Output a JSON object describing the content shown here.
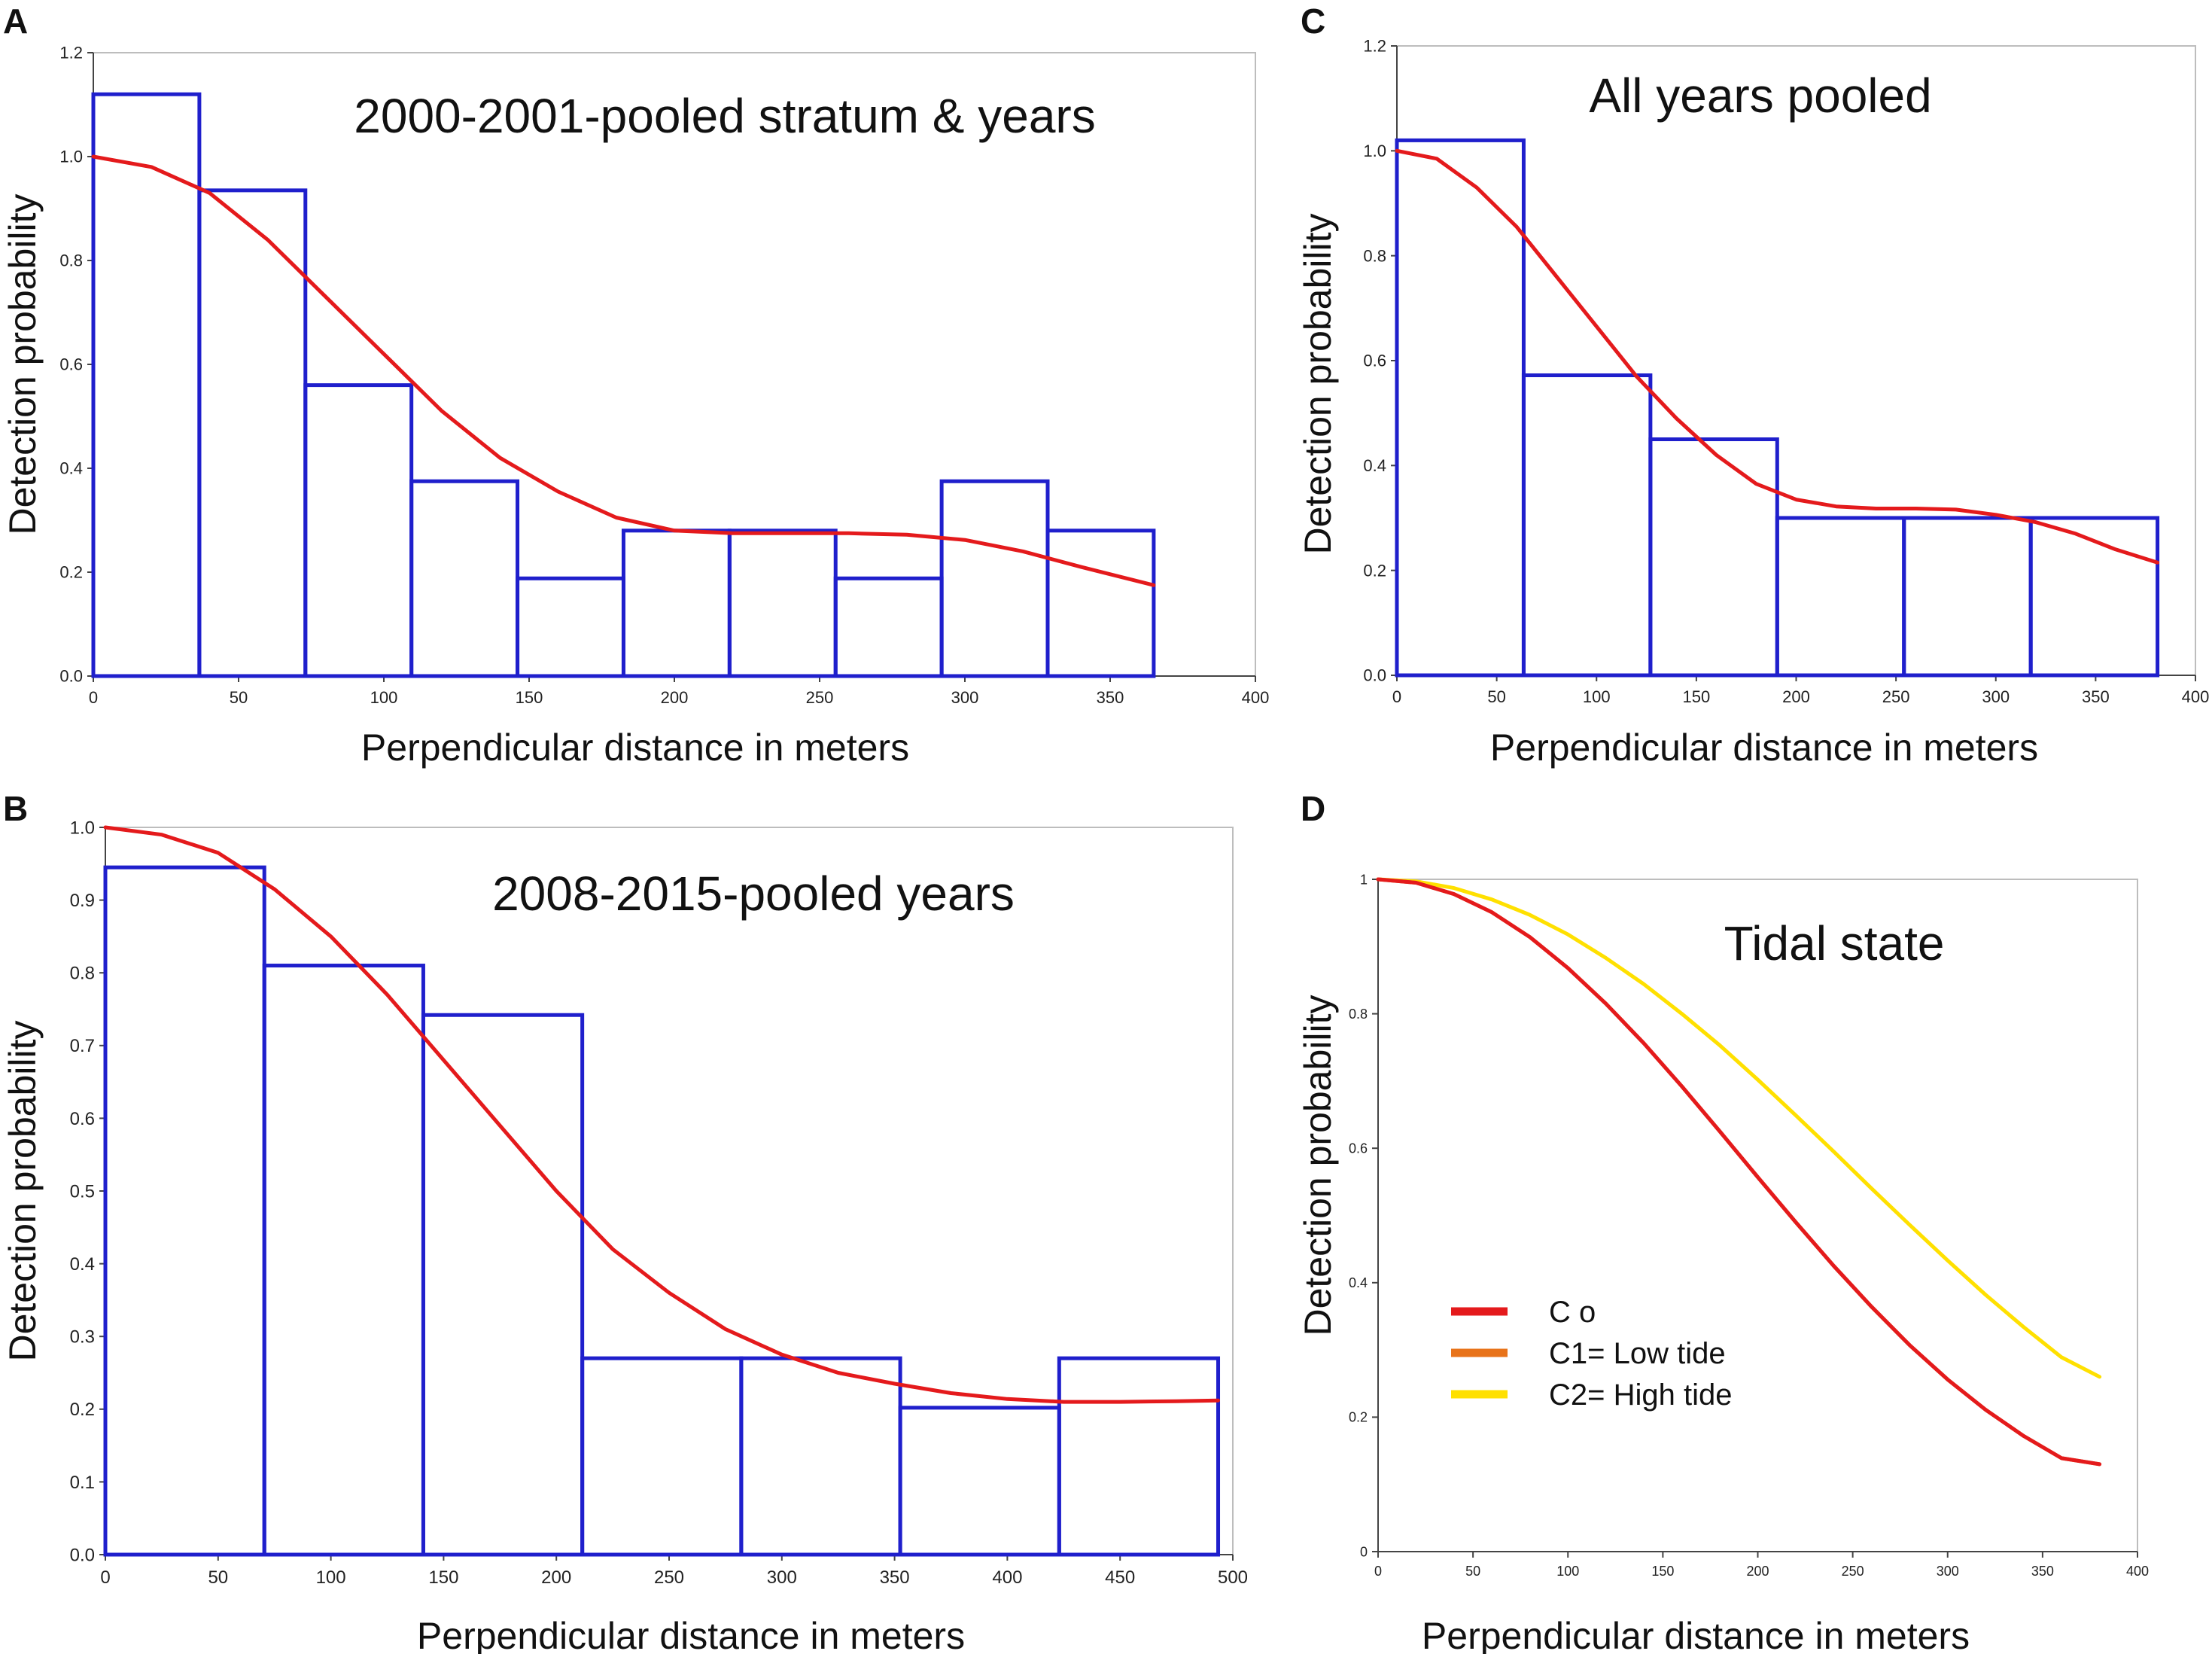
{
  "figure": {
    "panels": [
      {
        "letter": "A",
        "title": "2000-2001-pooled stratum & years",
        "xlabel": "Perpendicular distance in meters",
        "ylabel": "Detection probability",
        "xticks": [
          "0",
          "50",
          "100",
          "150",
          "200",
          "250",
          "300",
          "350",
          "400"
        ],
        "yticks": [
          "0.0",
          "0.2",
          "0.4",
          "0.6",
          "0.8",
          "1.0",
          "1.2"
        ]
      },
      {
        "letter": "B",
        "title": "2008-2015-pooled years",
        "xlabel": "Perpendicular distance in meters",
        "ylabel": "Detection probability",
        "xticks": [
          "0",
          "50",
          "100",
          "150",
          "200",
          "250",
          "300",
          "350",
          "400",
          "450",
          "500"
        ],
        "yticks": [
          "0.0",
          "0.1",
          "0.2",
          "0.3",
          "0.4",
          "0.5",
          "0.6",
          "0.7",
          "0.8",
          "0.9",
          "1.0"
        ]
      },
      {
        "letter": "C",
        "title": "All years pooled",
        "xlabel": "Perpendicular distance in meters",
        "ylabel": "Detection probability",
        "xticks": [
          "0",
          "50",
          "100",
          "150",
          "200",
          "250",
          "300",
          "350",
          "400"
        ],
        "yticks": [
          "0.0",
          "0.2",
          "0.4",
          "0.6",
          "0.8",
          "1.0",
          "1.2"
        ]
      },
      {
        "letter": "D",
        "title": "Tidal state",
        "xlabel": "Perpendicular distance in meters",
        "ylabel": "Detection probability",
        "xticks": [
          "0",
          "50",
          "100",
          "150",
          "200",
          "250",
          "300",
          "350",
          "400"
        ],
        "yticks": [
          "0",
          "0.2",
          "0.4",
          "0.6",
          "0.8",
          "1"
        ],
        "legend": [
          "C o",
          "C1= Low tide",
          "C2= High tide"
        ]
      }
    ]
  },
  "chart_data": [
    {
      "type": "bar",
      "id": "A",
      "title": "2000-2001-pooled stratum & years",
      "xlabel": "Perpendicular distance in meters",
      "ylabel": "Detection probability",
      "xlim": [
        0,
        400
      ],
      "ylim": [
        0,
        1.2
      ],
      "grid": false,
      "bin_edges": [
        0,
        36.5,
        73,
        109.5,
        146,
        182.5,
        219,
        255.5,
        292,
        328.5,
        365
      ],
      "values": [
        1.12,
        0.935,
        0.56,
        0.375,
        0.188,
        0.28,
        0.28,
        0.188,
        0.375,
        0.28
      ],
      "curve": {
        "name": "fitted detection function",
        "color": "#e41a1c",
        "x": [
          0,
          20,
          40,
          60,
          80,
          100,
          120,
          140,
          160,
          180,
          200,
          220,
          240,
          260,
          280,
          300,
          320,
          340,
          365
        ],
        "y": [
          1.0,
          0.98,
          0.93,
          0.84,
          0.73,
          0.62,
          0.51,
          0.42,
          0.355,
          0.305,
          0.28,
          0.275,
          0.275,
          0.275,
          0.272,
          0.262,
          0.24,
          0.21,
          0.175
        ]
      },
      "bar_color": "#1f1fcc"
    },
    {
      "type": "bar",
      "id": "B",
      "title": "2008-2015-pooled years",
      "xlabel": "Perpendicular distance in meters",
      "ylabel": "Detection probability",
      "xlim": [
        0,
        500
      ],
      "ylim": [
        0,
        1.0
      ],
      "grid": false,
      "bin_edges": [
        0,
        70.5,
        141,
        211.5,
        282,
        352.5,
        423,
        493.5
      ],
      "values": [
        0.945,
        0.81,
        0.742,
        0.27,
        0.27,
        0.202,
        0.27
      ],
      "curve": {
        "name": "fitted detection function",
        "color": "#e41a1c",
        "x": [
          0,
          25,
          50,
          75,
          100,
          125,
          150,
          175,
          200,
          225,
          250,
          275,
          300,
          325,
          350,
          375,
          400,
          425,
          450,
          475,
          493.5
        ],
        "y": [
          1.0,
          0.99,
          0.965,
          0.915,
          0.85,
          0.77,
          0.68,
          0.59,
          0.5,
          0.42,
          0.36,
          0.31,
          0.275,
          0.25,
          0.235,
          0.222,
          0.214,
          0.21,
          0.21,
          0.211,
          0.212
        ]
      },
      "bar_color": "#1f1fcc"
    },
    {
      "type": "bar",
      "id": "C",
      "title": "All years pooled",
      "xlabel": "Perpendicular distance in meters",
      "ylabel": "Detection probability",
      "xlim": [
        0,
        400
      ],
      "ylim": [
        0,
        1.2
      ],
      "grid": false,
      "bin_edges": [
        0,
        63.5,
        127,
        190.5,
        254,
        317.5,
        381
      ],
      "values": [
        1.02,
        0.572,
        0.45,
        0.3,
        0.3,
        0.3
      ],
      "curve": {
        "name": "fitted detection function",
        "color": "#e41a1c",
        "x": [
          0,
          20,
          40,
          60,
          80,
          100,
          120,
          140,
          160,
          180,
          200,
          220,
          240,
          260,
          280,
          300,
          320,
          340,
          360,
          381
        ],
        "y": [
          1.0,
          0.985,
          0.93,
          0.855,
          0.76,
          0.665,
          0.57,
          0.49,
          0.42,
          0.365,
          0.335,
          0.322,
          0.318,
          0.318,
          0.316,
          0.306,
          0.292,
          0.27,
          0.24,
          0.215
        ]
      },
      "bar_color": "#1f1fcc"
    },
    {
      "type": "line",
      "id": "D",
      "title": "Tidal state",
      "xlabel": "Perpendicular distance in meters",
      "ylabel": "Detection probability",
      "xlim": [
        0,
        400
      ],
      "ylim": [
        0,
        1
      ],
      "grid": false,
      "legend_position": "bottom-left",
      "x": [
        0,
        20,
        40,
        60,
        80,
        100,
        120,
        140,
        160,
        180,
        200,
        220,
        240,
        260,
        280,
        300,
        320,
        340,
        360,
        380
      ],
      "series": [
        {
          "name": "C o",
          "color": "#e41a1c",
          "values": [
            1.0,
            0.995,
            0.978,
            0.951,
            0.914,
            0.868,
            0.815,
            0.756,
            0.692,
            0.625,
            0.557,
            0.49,
            0.425,
            0.364,
            0.307,
            0.256,
            0.211,
            0.172,
            0.139,
            0.13
          ]
        },
        {
          "name": "C1= Low tide",
          "color": "#e8731a",
          "values": [
            1.0,
            0.995,
            0.978,
            0.951,
            0.914,
            0.868,
            0.815,
            0.756,
            0.692,
            0.625,
            0.557,
            0.49,
            0.425,
            0.364,
            0.307,
            0.256,
            0.211,
            0.172,
            0.139,
            0.13
          ]
        },
        {
          "name": "C2= High tide",
          "color": "#ffe000",
          "values": [
            1.0,
            0.997,
            0.987,
            0.97,
            0.947,
            0.918,
            0.883,
            0.844,
            0.8,
            0.753,
            0.702,
            0.649,
            0.595,
            0.54,
            0.486,
            0.433,
            0.382,
            0.334,
            0.289,
            0.26
          ]
        }
      ]
    }
  ]
}
